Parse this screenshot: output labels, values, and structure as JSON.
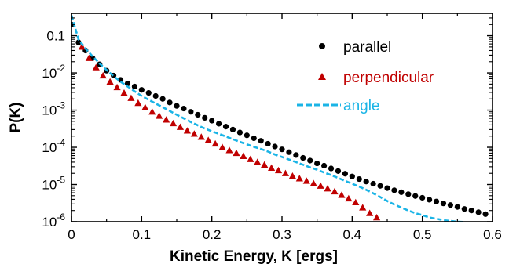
{
  "chart_data": {
    "type": "scatter",
    "xlabel": "Kinetic Energy, K  [ergs]",
    "ylabel": "P(K)",
    "xlim": [
      0,
      0.6
    ],
    "ylim": [
      1e-06,
      0.4
    ],
    "y_scale": "log",
    "grid": false,
    "legend_position": "top-right",
    "x_ticks": [
      {
        "value": 0,
        "label": "0"
      },
      {
        "value": 0.1,
        "label": "0.1"
      },
      {
        "value": 0.2,
        "label": "0.2"
      },
      {
        "value": 0.3,
        "label": "0.3"
      },
      {
        "value": 0.4,
        "label": "0.4"
      },
      {
        "value": 0.5,
        "label": "0.5"
      },
      {
        "value": 0.6,
        "label": "0.6"
      }
    ],
    "y_ticks": [
      {
        "value": 0.1,
        "base": "0.1",
        "exp": ""
      },
      {
        "value": 0.01,
        "base": "10",
        "exp": "-2"
      },
      {
        "value": 0.001,
        "base": "10",
        "exp": "-3"
      },
      {
        "value": 0.0001,
        "base": "10",
        "exp": "-4"
      },
      {
        "value": 1e-05,
        "base": "10",
        "exp": "-5"
      },
      {
        "value": 1e-06,
        "base": "10",
        "exp": "-6"
      }
    ],
    "series": [
      {
        "name": "parallel",
        "marker": "circle",
        "color": "#000000",
        "x": [
          0.0,
          0.01,
          0.02,
          0.03,
          0.04,
          0.05,
          0.06,
          0.07,
          0.08,
          0.09,
          0.1,
          0.11,
          0.12,
          0.13,
          0.14,
          0.15,
          0.16,
          0.17,
          0.18,
          0.19,
          0.2,
          0.21,
          0.22,
          0.23,
          0.24,
          0.25,
          0.26,
          0.27,
          0.28,
          0.29,
          0.3,
          0.31,
          0.32,
          0.33,
          0.34,
          0.35,
          0.36,
          0.37,
          0.38,
          0.39,
          0.4,
          0.41,
          0.42,
          0.43,
          0.44,
          0.45,
          0.46,
          0.47,
          0.48,
          0.49,
          0.5,
          0.51,
          0.52,
          0.53,
          0.54,
          0.55,
          0.56,
          0.57,
          0.58,
          0.59
        ],
        "y": [
          0.2,
          0.066,
          0.04,
          0.025,
          0.017,
          0.0115,
          0.0085,
          0.0065,
          0.0052,
          0.0043,
          0.0035,
          0.0029,
          0.0024,
          0.002,
          0.0016,
          0.0013,
          0.0011,
          0.0009,
          0.00075,
          0.00062,
          0.00052,
          0.00043,
          0.00036,
          0.0003,
          0.00025,
          0.00021,
          0.000175,
          0.00015,
          0.000125,
          0.000105,
          8.8e-05,
          7.4e-05,
          6.2e-05,
          5.2e-05,
          4.4e-05,
          3.7e-05,
          3.2e-05,
          2.7e-05,
          2.3e-05,
          1.95e-05,
          1.65e-05,
          1.4e-05,
          1.2e-05,
          1.05e-05,
          9.2e-06,
          8e-06,
          7e-06,
          6.2e-06,
          5.5e-06,
          4.9e-06,
          4.4e-06,
          3.9e-06,
          3.5e-06,
          3.1e-06,
          2.8e-06,
          2.5e-06,
          2.2e-06,
          2e-06,
          1.8e-06,
          1.6e-06
        ]
      },
      {
        "name": "perpendicular",
        "marker": "triangle",
        "color": "#c00000",
        "x": [
          0.015,
          0.025,
          0.035,
          0.045,
          0.055,
          0.065,
          0.075,
          0.085,
          0.095,
          0.105,
          0.115,
          0.125,
          0.135,
          0.145,
          0.155,
          0.165,
          0.175,
          0.185,
          0.195,
          0.205,
          0.215,
          0.225,
          0.235,
          0.245,
          0.255,
          0.265,
          0.275,
          0.285,
          0.295,
          0.305,
          0.315,
          0.325,
          0.335,
          0.345,
          0.355,
          0.365,
          0.375,
          0.385,
          0.395,
          0.405,
          0.415,
          0.425,
          0.435
        ],
        "y": [
          0.05,
          0.025,
          0.014,
          0.0085,
          0.0058,
          0.0041,
          0.0029,
          0.0021,
          0.00155,
          0.00118,
          0.0009,
          0.0007,
          0.00055,
          0.00044,
          0.00035,
          0.00028,
          0.00023,
          0.00019,
          0.000155,
          0.000125,
          0.0001,
          8.3e-05,
          7e-05,
          5.8e-05,
          4.8e-05,
          4e-05,
          3.4e-05,
          2.8e-05,
          2.4e-05,
          2e-05,
          1.7e-05,
          1.45e-05,
          1.25e-05,
          1.07e-05,
          9.2e-06,
          7.8e-06,
          6.5e-06,
          5.2e-06,
          4.2e-06,
          3.3e-06,
          2.4e-06,
          1.7e-06,
          1.3e-06
        ]
      },
      {
        "name": "angle",
        "marker": "dashed-line",
        "color": "#1ab4e6",
        "x": [
          0,
          0.01,
          0.02,
          0.03,
          0.04,
          0.05,
          0.06,
          0.07,
          0.08,
          0.09,
          0.1,
          0.11,
          0.12,
          0.13,
          0.14,
          0.15,
          0.16,
          0.17,
          0.18,
          0.19,
          0.2,
          0.21,
          0.22,
          0.23,
          0.24,
          0.25,
          0.26,
          0.27,
          0.28,
          0.29,
          0.3,
          0.31,
          0.32,
          0.33,
          0.34,
          0.35,
          0.36,
          0.37,
          0.38,
          0.39,
          0.4,
          0.41,
          0.42,
          0.43,
          0.44,
          0.45,
          0.46,
          0.47,
          0.48,
          0.49,
          0.5,
          0.51,
          0.52,
          0.53,
          0.54,
          0.55,
          0.56
        ],
        "y": [
          0.35,
          0.08,
          0.045,
          0.028,
          0.018,
          0.012,
          0.0082,
          0.0058,
          0.0043,
          0.0032,
          0.0024,
          0.0019,
          0.0015,
          0.0012,
          0.00095,
          0.00075,
          0.0006,
          0.00048,
          0.00039,
          0.00032,
          0.00027,
          0.00023,
          0.000195,
          0.000165,
          0.00014,
          0.00012,
          0.000103,
          9e-05,
          7.7e-05,
          6.4e-05,
          5.5e-05,
          4.7e-05,
          4e-05,
          3.4e-05,
          2.9e-05,
          2.5e-05,
          2.1e-05,
          1.8e-05,
          1.5e-05,
          1.25e-05,
          1.05e-05,
          8.8e-06,
          7.2e-06,
          5.8e-06,
          4.6e-06,
          3.6e-06,
          2.9e-06,
          2.4e-06,
          2e-06,
          1.7e-06,
          1.5e-06,
          1.3e-06,
          1.2e-06,
          1.1e-06,
          1.05e-06,
          1e-06,
          9.8e-07
        ]
      }
    ]
  }
}
